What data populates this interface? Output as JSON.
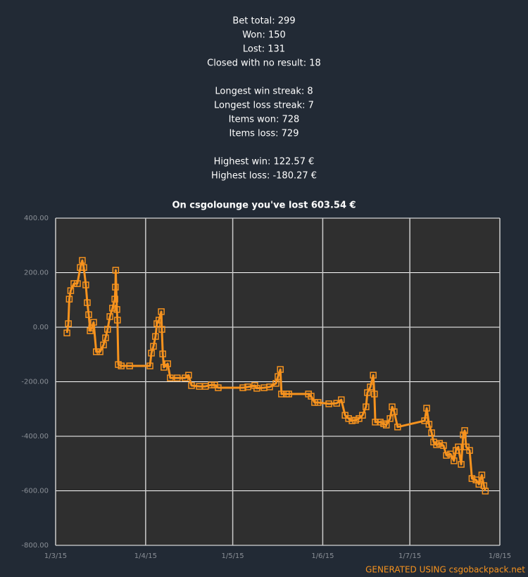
{
  "stats": [
    [
      "Bet total: 299",
      "Won: 150",
      "Lost: 131",
      "Closed with no result: 18"
    ],
    [
      "Longest win streak: 8",
      "Longest loss streak: 7",
      "Items won: 728",
      "Items loss: 729"
    ],
    [
      "Highest win: 122.57 €",
      "Highest loss: -180.27 €"
    ]
  ],
  "chart_data": {
    "type": "line",
    "title": "On csgolounge you've lost 603.54 €",
    "series": [
      {
        "name": null,
        "color": "#f7931e",
        "x": [
          3.9,
          4.4,
          4.7,
          5.2,
          6.3,
          7.5,
          8.5,
          9.2,
          9.7,
          10.4,
          10.9,
          11.4,
          11.9,
          12.4,
          13.1,
          14.0,
          15.3,
          16.5,
          17.2,
          17.9,
          18.7,
          19.6,
          20.4,
          20.6,
          20.7,
          21.1,
          21.3,
          21.6,
          22.6,
          25.5,
          32.5,
          33.0,
          33.7,
          34.4,
          34.9,
          35.6,
          36.4,
          36.6,
          36.9,
          37.3,
          38.6,
          39.5,
          41.9,
          44.6,
          45.8,
          46.8,
          49.5,
          51.6,
          53.6,
          54.8,
          56.0,
          64.5,
          66.2,
          68.6,
          69.3,
          71.8,
          73.7,
          75.9,
          76.6,
          77.4,
          77.8,
          79.5,
          80.3,
          87.1,
          88.0,
          89.2,
          90.4,
          94.1,
          96.8,
          98.4,
          99.7,
          100.9,
          102.1,
          103.3,
          104.5,
          105.7,
          106.9,
          107.4,
          108.4,
          109.4,
          109.8,
          110.1,
          111.8,
          113.0,
          113.9,
          115.2,
          115.9,
          116.6,
          117.8,
          127.1,
          127.8,
          128.6,
          129.5,
          130.2,
          131.2,
          132.2,
          133.6,
          134.6,
          136.0,
          137.2,
          137.9,
          138.7,
          139.7,
          140.4,
          140.9,
          141.4,
          142.6,
          143.4,
          144.8,
          145.8,
          146.8,
          147.5,
          148.0
        ],
        "values": [
          -21,
          13,
          103,
          134,
          160,
          160,
          219,
          245,
          219,
          155,
          90,
          46,
          -13,
          -3,
          18,
          -90,
          -90,
          -65,
          -39,
          -8,
          39,
          70,
          103,
          147,
          209,
          65,
          26,
          -137,
          -142,
          -142,
          -142,
          -95,
          -70,
          -34,
          13,
          26,
          57,
          -8,
          -98,
          -147,
          -134,
          -186,
          -186,
          -186,
          -176,
          -214,
          -217,
          -217,
          -212,
          -212,
          -222,
          -222,
          -219,
          -214,
          -224,
          -222,
          -219,
          -206,
          -181,
          -155,
          -245,
          -245,
          -245,
          -245,
          -253,
          -276,
          -276,
          -281,
          -279,
          -266,
          -323,
          -335,
          -343,
          -341,
          -335,
          -323,
          -292,
          -240,
          -219,
          -176,
          -245,
          -348,
          -348,
          -354,
          -359,
          -335,
          -292,
          -310,
          -366,
          -343,
          -297,
          -356,
          -387,
          -421,
          -431,
          -426,
          -434,
          -470,
          -465,
          -490,
          -452,
          -439,
          -503,
          -395,
          -379,
          -439,
          -452,
          -555,
          -560,
          -576,
          -542,
          -581,
          -601
        ]
      }
    ],
    "xlim": [
      0,
      153
    ],
    "xticks": [
      {
        "value": 0,
        "label": "1/3/15"
      },
      {
        "value": 31,
        "label": "1/4/15"
      },
      {
        "value": 61,
        "label": "1/5/15"
      },
      {
        "value": 92,
        "label": "1/6/15"
      },
      {
        "value": 122,
        "label": "1/7/15"
      },
      {
        "value": 153,
        "label": "1/8/15"
      }
    ],
    "ylim": [
      -800,
      400
    ],
    "yticks": [
      {
        "value": -800,
        "label": "-800.00"
      },
      {
        "value": -600,
        "label": "-600.00"
      },
      {
        "value": -400,
        "label": "-400.00"
      },
      {
        "value": -200,
        "label": "-200.00"
      },
      {
        "value": 0,
        "label": "0.00"
      },
      {
        "value": 200,
        "label": "200.00"
      },
      {
        "value": 400,
        "label": "400.00"
      }
    ],
    "grid": true,
    "footer": "GENERATED USING csgobackpack.net"
  }
}
